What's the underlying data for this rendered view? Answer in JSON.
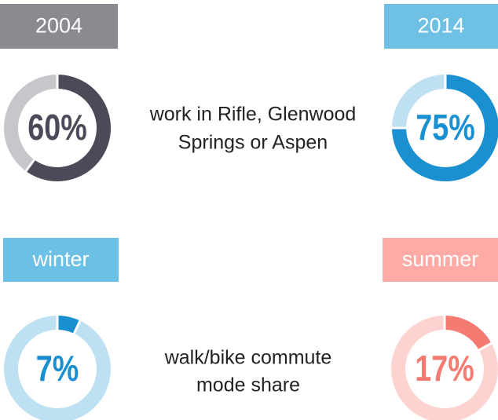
{
  "chart_data": [
    {
      "type": "donut",
      "title": "2004",
      "values": [
        60
      ],
      "value_labels": [
        "60%"
      ],
      "ylim": [
        0,
        100
      ],
      "color": "#4a4a58",
      "track_color": "#c6c6cb",
      "header_color": "#8b8a90"
    },
    {
      "type": "donut",
      "title": "2014",
      "values": [
        75
      ],
      "value_labels": [
        "75%"
      ],
      "ylim": [
        0,
        100
      ],
      "color": "#1a90d0",
      "track_color": "#bfe0f2",
      "header_color": "#6ec1e4"
    },
    {
      "type": "donut",
      "title": "winter",
      "values": [
        7
      ],
      "value_labels": [
        "7%"
      ],
      "ylim": [
        0,
        100
      ],
      "color": "#1a8fd0",
      "track_color": "#bde1f3",
      "header_color": "#6cc0e5"
    },
    {
      "type": "donut",
      "title": "summer",
      "values": [
        17
      ],
      "value_labels": [
        "17%"
      ],
      "ylim": [
        0,
        100
      ],
      "color": "#f47a72",
      "track_color": "#fdd3d0",
      "header_color": "#ffaaa5"
    }
  ],
  "captions": [
    [
      "work in Rifle, Glenwood",
      "Springs or Aspen"
    ],
    [
      "walk/bike commute",
      "mode share"
    ]
  ]
}
